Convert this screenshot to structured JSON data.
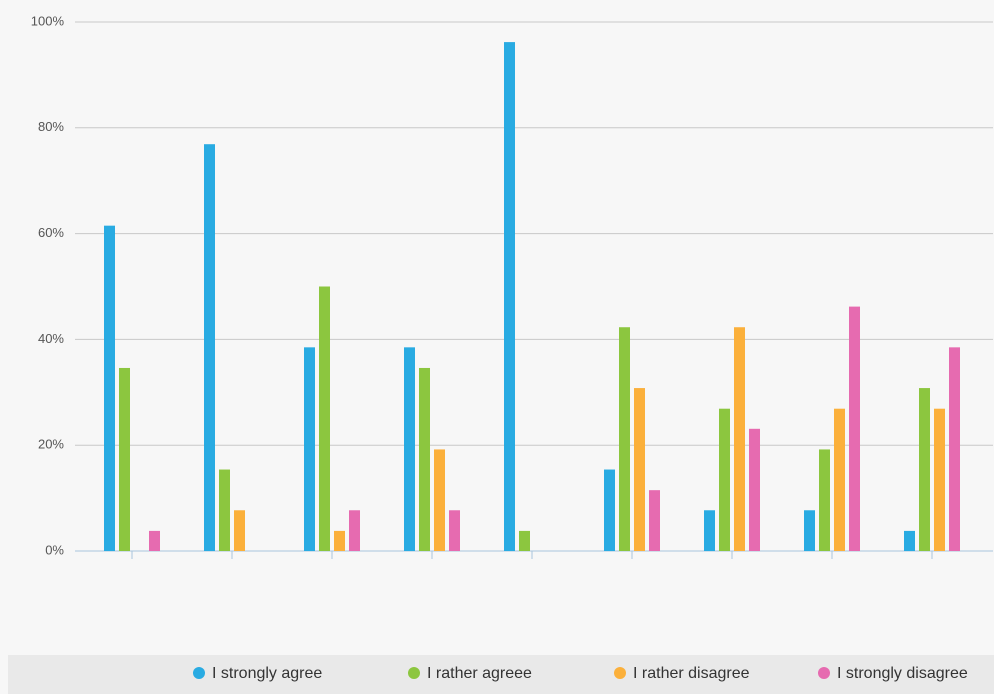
{
  "chart_data": {
    "type": "bar",
    "categories": [
      null,
      null,
      null,
      null,
      null,
      null,
      null,
      null,
      null
    ],
    "series": [
      {
        "name": "I strongly agree",
        "color": "#29abe2",
        "values": [
          61.5,
          76.9,
          38.5,
          38.5,
          96.2,
          15.4,
          7.7,
          7.7,
          3.8
        ]
      },
      {
        "name": "I rather agreee",
        "color": "#8cc63f",
        "values": [
          34.6,
          15.4,
          50,
          34.6,
          3.8,
          42.3,
          26.9,
          19.2,
          30.8
        ]
      },
      {
        "name": "I rather disagree",
        "color": "#fbb03b",
        "values": [
          0,
          7.7,
          3.8,
          19.2,
          0,
          30.8,
          42.3,
          26.9,
          26.9
        ]
      },
      {
        "name": "I strongly disagree",
        "color": "#e66bb0",
        "values": [
          3.8,
          0,
          7.7,
          7.7,
          0,
          11.5,
          23.1,
          46.2,
          38.5
        ]
      }
    ],
    "ylim": [
      0,
      100
    ],
    "yticks": [
      {
        "value": 0,
        "label": "0%"
      },
      {
        "value": 20,
        "label": "20%"
      },
      {
        "value": 40,
        "label": "40%"
      },
      {
        "value": 60,
        "label": "60%"
      },
      {
        "value": 80,
        "label": "80%"
      },
      {
        "value": 100,
        "label": "100%"
      }
    ],
    "grid": true,
    "legend": "bottom"
  }
}
